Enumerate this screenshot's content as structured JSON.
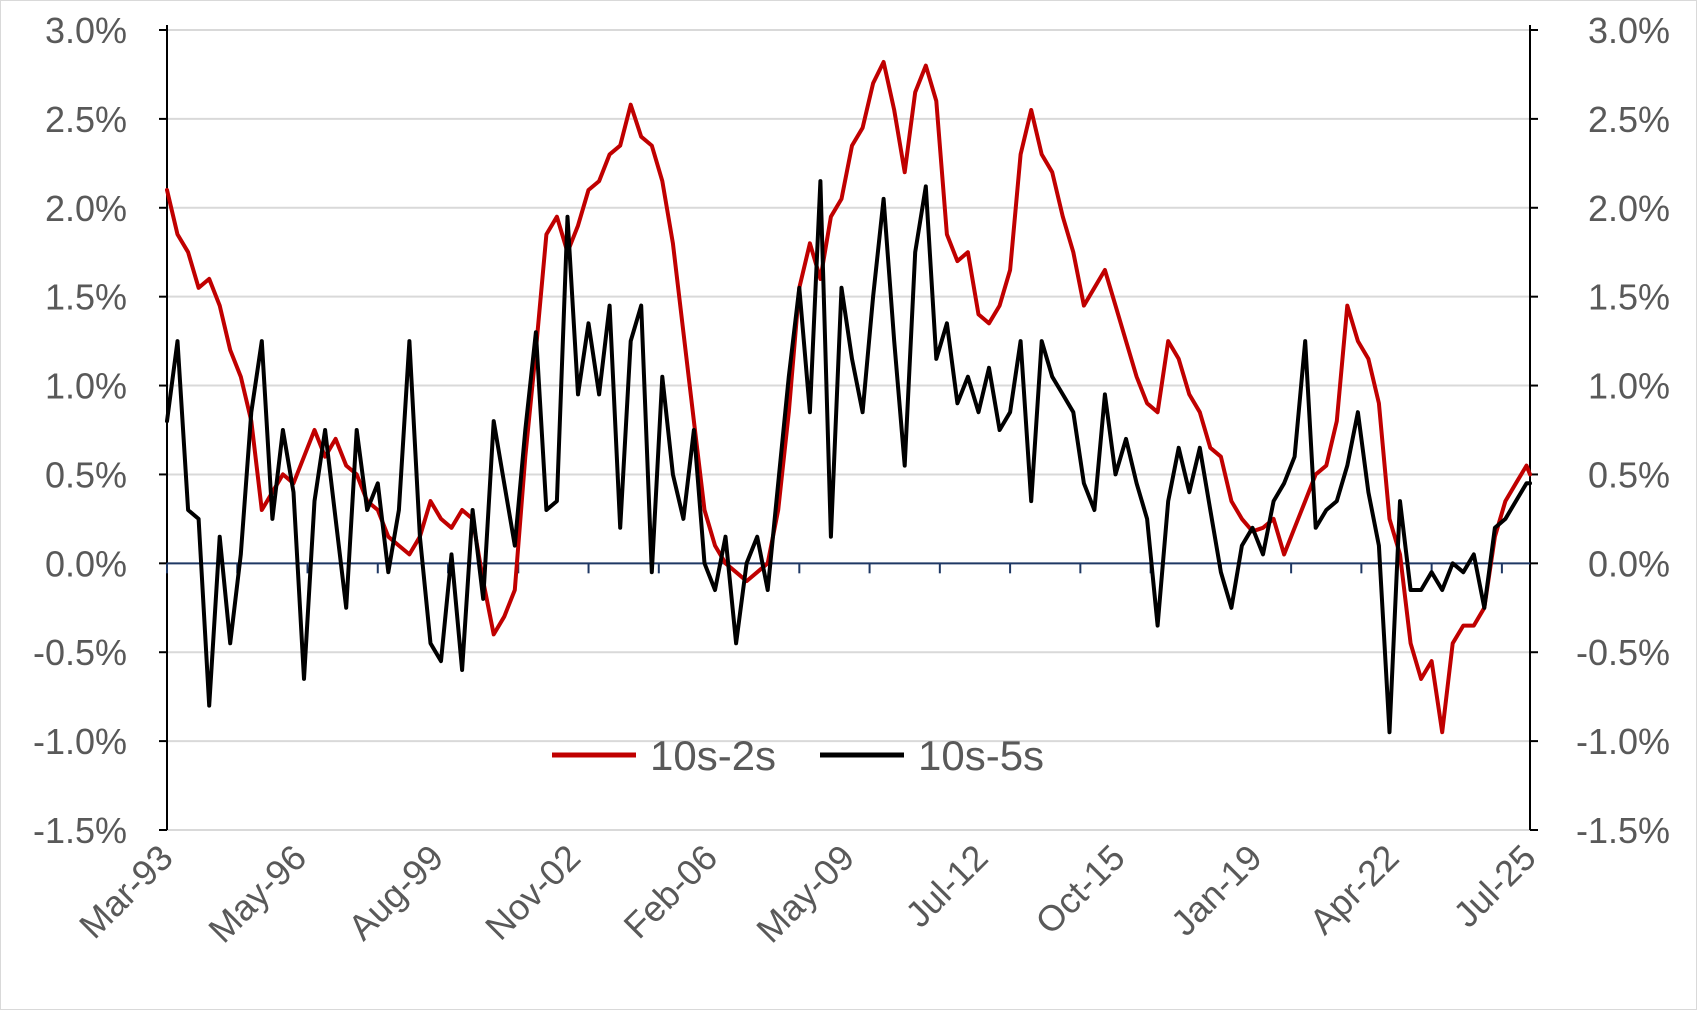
{
  "chart_data": {
    "type": "line",
    "title": "",
    "xlabel": "",
    "ylabel": "",
    "ylim": [
      -0.015,
      0.03
    ],
    "y_ticks": [
      "3.0%",
      "2.5%",
      "2.0%",
      "1.5%",
      "1.0%",
      "0.5%",
      "0.0%",
      "-0.5%",
      "-1.0%",
      "-1.5%"
    ],
    "y_tick_values": [
      0.03,
      0.025,
      0.02,
      0.015,
      0.01,
      0.005,
      0.0,
      -0.005,
      -0.01,
      -0.015
    ],
    "x_range": [
      "1993-03",
      "2025-07"
    ],
    "x_ticks": [
      "Mar-93",
      "May-96",
      "Aug-99",
      "Nov-02",
      "Feb-06",
      "May-09",
      "Jul-12",
      "Oct-15",
      "Jan-19",
      "Apr-22",
      "Jul-25"
    ],
    "x_tick_dates": [
      "1993-03",
      "1996-05",
      "1999-08",
      "2002-11",
      "2006-02",
      "2009-05",
      "2012-07",
      "2015-10",
      "2019-01",
      "2022-04",
      "2025-07"
    ],
    "grid": true,
    "legend_position": "lower-center",
    "dual_axis": true,
    "series": [
      {
        "name": "10s-2s",
        "color": "#C00000",
        "points": [
          [
            "1993-03",
            0.021
          ],
          [
            "1993-06",
            0.0185
          ],
          [
            "1993-09",
            0.0175
          ],
          [
            "1993-12",
            0.0155
          ],
          [
            "1994-03",
            0.016
          ],
          [
            "1994-06",
            0.0145
          ],
          [
            "1994-09",
            0.012
          ],
          [
            "1994-12",
            0.0105
          ],
          [
            "1995-03",
            0.008
          ],
          [
            "1995-06",
            0.003
          ],
          [
            "1995-09",
            0.004
          ],
          [
            "1995-12",
            0.005
          ],
          [
            "1996-03",
            0.0045
          ],
          [
            "1996-06",
            0.006
          ],
          [
            "1996-09",
            0.0075
          ],
          [
            "1996-12",
            0.006
          ],
          [
            "1997-03",
            0.007
          ],
          [
            "1997-06",
            0.0055
          ],
          [
            "1997-09",
            0.005
          ],
          [
            "1997-12",
            0.0035
          ],
          [
            "1998-03",
            0.003
          ],
          [
            "1998-06",
            0.0015
          ],
          [
            "1998-09",
            0.001
          ],
          [
            "1998-12",
            0.0005
          ],
          [
            "1999-03",
            0.0015
          ],
          [
            "1999-06",
            0.0035
          ],
          [
            "1999-09",
            0.0025
          ],
          [
            "1999-12",
            0.002
          ],
          [
            "2000-03",
            0.003
          ],
          [
            "2000-06",
            0.0025
          ],
          [
            "2000-09",
            -0.001
          ],
          [
            "2000-12",
            -0.004
          ],
          [
            "2001-03",
            -0.003
          ],
          [
            "2001-06",
            -0.0015
          ],
          [
            "2001-09",
            0.006
          ],
          [
            "2001-12",
            0.012
          ],
          [
            "2002-03",
            0.0185
          ],
          [
            "2002-06",
            0.0195
          ],
          [
            "2002-09",
            0.0175
          ],
          [
            "2002-12",
            0.019
          ],
          [
            "2003-03",
            0.021
          ],
          [
            "2003-06",
            0.0215
          ],
          [
            "2003-09",
            0.023
          ],
          [
            "2003-12",
            0.0235
          ],
          [
            "2004-03",
            0.0258
          ],
          [
            "2004-06",
            0.024
          ],
          [
            "2004-09",
            0.0235
          ],
          [
            "2004-12",
            0.0215
          ],
          [
            "2005-03",
            0.018
          ],
          [
            "2005-06",
            0.013
          ],
          [
            "2005-09",
            0.008
          ],
          [
            "2005-12",
            0.003
          ],
          [
            "2006-03",
            0.001
          ],
          [
            "2006-06",
            0.0
          ],
          [
            "2006-09",
            -0.0005
          ],
          [
            "2006-12",
            -0.001
          ],
          [
            "2007-03",
            -0.0005
          ],
          [
            "2007-06",
            0.0
          ],
          [
            "2007-09",
            0.003
          ],
          [
            "2007-12",
            0.0085
          ],
          [
            "2008-03",
            0.0155
          ],
          [
            "2008-06",
            0.018
          ],
          [
            "2008-09",
            0.016
          ],
          [
            "2008-12",
            0.0195
          ],
          [
            "2009-03",
            0.0205
          ],
          [
            "2009-06",
            0.0235
          ],
          [
            "2009-09",
            0.0245
          ],
          [
            "2009-12",
            0.027
          ],
          [
            "2010-03",
            0.0282
          ],
          [
            "2010-06",
            0.0255
          ],
          [
            "2010-09",
            0.022
          ],
          [
            "2010-12",
            0.0265
          ],
          [
            "2011-03",
            0.028
          ],
          [
            "2011-06",
            0.026
          ],
          [
            "2011-09",
            0.0185
          ],
          [
            "2011-12",
            0.017
          ],
          [
            "2012-03",
            0.0175
          ],
          [
            "2012-06",
            0.014
          ],
          [
            "2012-09",
            0.0135
          ],
          [
            "2012-12",
            0.0145
          ],
          [
            "2013-03",
            0.0165
          ],
          [
            "2013-06",
            0.023
          ],
          [
            "2013-09",
            0.0255
          ],
          [
            "2013-12",
            0.023
          ],
          [
            "2014-03",
            0.022
          ],
          [
            "2014-06",
            0.0195
          ],
          [
            "2014-09",
            0.0175
          ],
          [
            "2014-12",
            0.0145
          ],
          [
            "2015-03",
            0.0155
          ],
          [
            "2015-06",
            0.0165
          ],
          [
            "2015-09",
            0.0145
          ],
          [
            "2015-12",
            0.0125
          ],
          [
            "2016-03",
            0.0105
          ],
          [
            "2016-06",
            0.009
          ],
          [
            "2016-09",
            0.0085
          ],
          [
            "2016-12",
            0.0125
          ],
          [
            "2017-03",
            0.0115
          ],
          [
            "2017-06",
            0.0095
          ],
          [
            "2017-09",
            0.0085
          ],
          [
            "2017-12",
            0.0065
          ],
          [
            "2018-03",
            0.006
          ],
          [
            "2018-06",
            0.0035
          ],
          [
            "2018-09",
            0.0025
          ],
          [
            "2018-12",
            0.0018
          ],
          [
            "2019-03",
            0.002
          ],
          [
            "2019-06",
            0.0025
          ],
          [
            "2019-09",
            0.0005
          ],
          [
            "2019-12",
            0.002
          ],
          [
            "2020-03",
            0.0035
          ],
          [
            "2020-06",
            0.005
          ],
          [
            "2020-09",
            0.0055
          ],
          [
            "2020-12",
            0.008
          ],
          [
            "2021-03",
            0.0145
          ],
          [
            "2021-06",
            0.0125
          ],
          [
            "2021-09",
            0.0115
          ],
          [
            "2021-12",
            0.009
          ],
          [
            "2022-03",
            0.0025
          ],
          [
            "2022-06",
            0.0005
          ],
          [
            "2022-09",
            -0.0045
          ],
          [
            "2022-12",
            -0.0065
          ],
          [
            "2023-03",
            -0.0055
          ],
          [
            "2023-06",
            -0.0095
          ],
          [
            "2023-09",
            -0.0045
          ],
          [
            "2023-12",
            -0.0035
          ],
          [
            "2024-03",
            -0.0035
          ],
          [
            "2024-06",
            -0.0025
          ],
          [
            "2024-09",
            0.0015
          ],
          [
            "2024-12",
            0.0035
          ],
          [
            "2025-03",
            0.0045
          ],
          [
            "2025-06",
            0.0055
          ],
          [
            "2025-07",
            0.005
          ]
        ]
      },
      {
        "name": "10s-5s",
        "color": "#000000",
        "points": [
          [
            "1993-03",
            0.008
          ],
          [
            "1993-06",
            0.0125
          ],
          [
            "1993-09",
            0.003
          ],
          [
            "1993-12",
            0.0025
          ],
          [
            "1994-03",
            -0.008
          ],
          [
            "1994-06",
            0.0015
          ],
          [
            "1994-09",
            -0.0045
          ],
          [
            "1994-12",
            0.0005
          ],
          [
            "1995-03",
            0.0085
          ],
          [
            "1995-06",
            0.0125
          ],
          [
            "1995-09",
            0.0025
          ],
          [
            "1995-12",
            0.0075
          ],
          [
            "1996-03",
            0.004
          ],
          [
            "1996-06",
            -0.0065
          ],
          [
            "1996-09",
            0.0035
          ],
          [
            "1996-12",
            0.0075
          ],
          [
            "1997-03",
            0.0025
          ],
          [
            "1997-06",
            -0.0025
          ],
          [
            "1997-09",
            0.0075
          ],
          [
            "1997-12",
            0.003
          ],
          [
            "1998-03",
            0.0045
          ],
          [
            "1998-06",
            -0.0005
          ],
          [
            "1998-09",
            0.003
          ],
          [
            "1998-12",
            0.0125
          ],
          [
            "1999-03",
            0.0015
          ],
          [
            "1999-06",
            -0.0045
          ],
          [
            "1999-09",
            -0.0055
          ],
          [
            "1999-12",
            0.0005
          ],
          [
            "2000-03",
            -0.006
          ],
          [
            "2000-06",
            0.003
          ],
          [
            "2000-09",
            -0.002
          ],
          [
            "2000-12",
            0.008
          ],
          [
            "2001-03",
            0.0045
          ],
          [
            "2001-06",
            0.001
          ],
          [
            "2001-09",
            0.0075
          ],
          [
            "2001-12",
            0.013
          ],
          [
            "2002-03",
            0.003
          ],
          [
            "2002-06",
            0.0035
          ],
          [
            "2002-09",
            0.0195
          ],
          [
            "2002-12",
            0.0095
          ],
          [
            "2003-03",
            0.0135
          ],
          [
            "2003-06",
            0.0095
          ],
          [
            "2003-09",
            0.0145
          ],
          [
            "2003-12",
            0.002
          ],
          [
            "2004-03",
            0.0125
          ],
          [
            "2004-06",
            0.0145
          ],
          [
            "2004-09",
            -0.0005
          ],
          [
            "2004-12",
            0.0105
          ],
          [
            "2005-03",
            0.005
          ],
          [
            "2005-06",
            0.0025
          ],
          [
            "2005-09",
            0.0075
          ],
          [
            "2005-12",
            0.0
          ],
          [
            "2006-03",
            -0.0015
          ],
          [
            "2006-06",
            0.0015
          ],
          [
            "2006-09",
            -0.0045
          ],
          [
            "2006-12",
            0.0
          ],
          [
            "2007-03",
            0.0015
          ],
          [
            "2007-06",
            -0.0015
          ],
          [
            "2007-09",
            0.0045
          ],
          [
            "2007-12",
            0.0105
          ],
          [
            "2008-03",
            0.0155
          ],
          [
            "2008-06",
            0.0085
          ],
          [
            "2008-09",
            0.0215
          ],
          [
            "2008-12",
            0.0015
          ],
          [
            "2009-03",
            0.0155
          ],
          [
            "2009-06",
            0.0115
          ],
          [
            "2009-09",
            0.0085
          ],
          [
            "2009-12",
            0.015
          ],
          [
            "2010-03",
            0.0205
          ],
          [
            "2010-06",
            0.0125
          ],
          [
            "2010-09",
            0.0055
          ],
          [
            "2010-12",
            0.0175
          ],
          [
            "2011-03",
            0.0212
          ],
          [
            "2011-06",
            0.0115
          ],
          [
            "2011-09",
            0.0135
          ],
          [
            "2011-12",
            0.009
          ],
          [
            "2012-03",
            0.0105
          ],
          [
            "2012-06",
            0.0085
          ],
          [
            "2012-09",
            0.011
          ],
          [
            "2012-12",
            0.0075
          ],
          [
            "2013-03",
            0.0085
          ],
          [
            "2013-06",
            0.0125
          ],
          [
            "2013-09",
            0.0035
          ],
          [
            "2013-12",
            0.0125
          ],
          [
            "2014-03",
            0.0105
          ],
          [
            "2014-06",
            0.0095
          ],
          [
            "2014-09",
            0.0085
          ],
          [
            "2014-12",
            0.0045
          ],
          [
            "2015-03",
            0.003
          ],
          [
            "2015-06",
            0.0095
          ],
          [
            "2015-09",
            0.005
          ],
          [
            "2015-12",
            0.007
          ],
          [
            "2016-03",
            0.0045
          ],
          [
            "2016-06",
            0.0025
          ],
          [
            "2016-09",
            -0.0035
          ],
          [
            "2016-12",
            0.0035
          ],
          [
            "2017-03",
            0.0065
          ],
          [
            "2017-06",
            0.004
          ],
          [
            "2017-09",
            0.0065
          ],
          [
            "2017-12",
            0.003
          ],
          [
            "2018-03",
            -0.0005
          ],
          [
            "2018-06",
            -0.0025
          ],
          [
            "2018-09",
            0.001
          ],
          [
            "2018-12",
            0.002
          ],
          [
            "2019-03",
            0.0005
          ],
          [
            "2019-06",
            0.0035
          ],
          [
            "2019-09",
            0.0045
          ],
          [
            "2019-12",
            0.006
          ],
          [
            "2020-03",
            0.0125
          ],
          [
            "2020-06",
            0.002
          ],
          [
            "2020-09",
            0.003
          ],
          [
            "2020-12",
            0.0035
          ],
          [
            "2021-03",
            0.0055
          ],
          [
            "2021-06",
            0.0085
          ],
          [
            "2021-09",
            0.004
          ],
          [
            "2021-12",
            0.001
          ],
          [
            "2022-03",
            -0.0095
          ],
          [
            "2022-06",
            0.0035
          ],
          [
            "2022-09",
            -0.0015
          ],
          [
            "2022-12",
            -0.0015
          ],
          [
            "2023-03",
            -0.0005
          ],
          [
            "2023-06",
            -0.0015
          ],
          [
            "2023-09",
            0.0
          ],
          [
            "2023-12",
            -0.0005
          ],
          [
            "2024-03",
            0.0005
          ],
          [
            "2024-06",
            -0.0025
          ],
          [
            "2024-09",
            0.002
          ],
          [
            "2024-12",
            0.0025
          ],
          [
            "2025-03",
            0.0035
          ],
          [
            "2025-06",
            0.0045
          ],
          [
            "2025-07",
            0.0045
          ]
        ]
      }
    ]
  }
}
